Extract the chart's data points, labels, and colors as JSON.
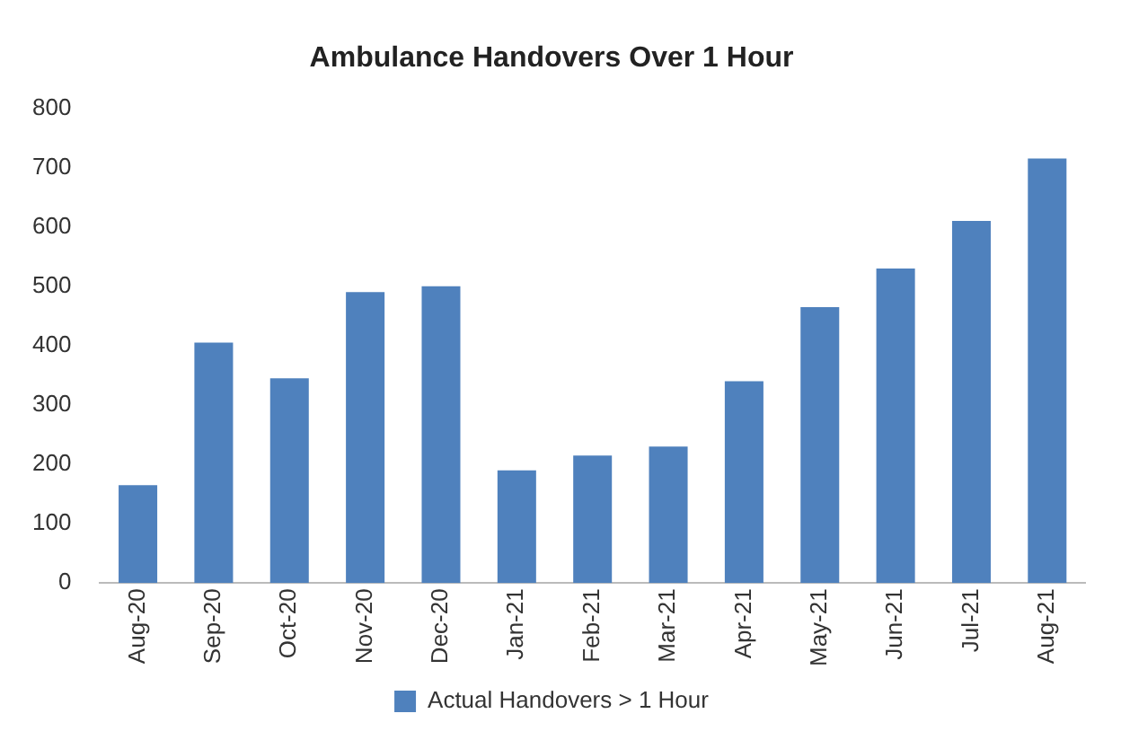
{
  "chart_data": {
    "type": "bar",
    "title": "Ambulance Handovers Over 1 Hour",
    "categories": [
      "Aug-20",
      "Sep-20",
      "Oct-20",
      "Nov-20",
      "Dec-20",
      "Jan-21",
      "Feb-21",
      "Mar-21",
      "Apr-21",
      "May-21",
      "Jun-21",
      "Jul-21",
      "Aug-21"
    ],
    "series": [
      {
        "name": "Actual Handovers > 1 Hour",
        "color": "#4f81bd",
        "values": [
          165,
          405,
          345,
          490,
          500,
          190,
          215,
          230,
          340,
          465,
          530,
          610,
          715
        ]
      }
    ],
    "ylim": [
      0,
      800
    ],
    "yticks": [
      0,
      100,
      200,
      300,
      400,
      500,
      600,
      700,
      800
    ],
    "grid": false,
    "legend": "bottom"
  }
}
